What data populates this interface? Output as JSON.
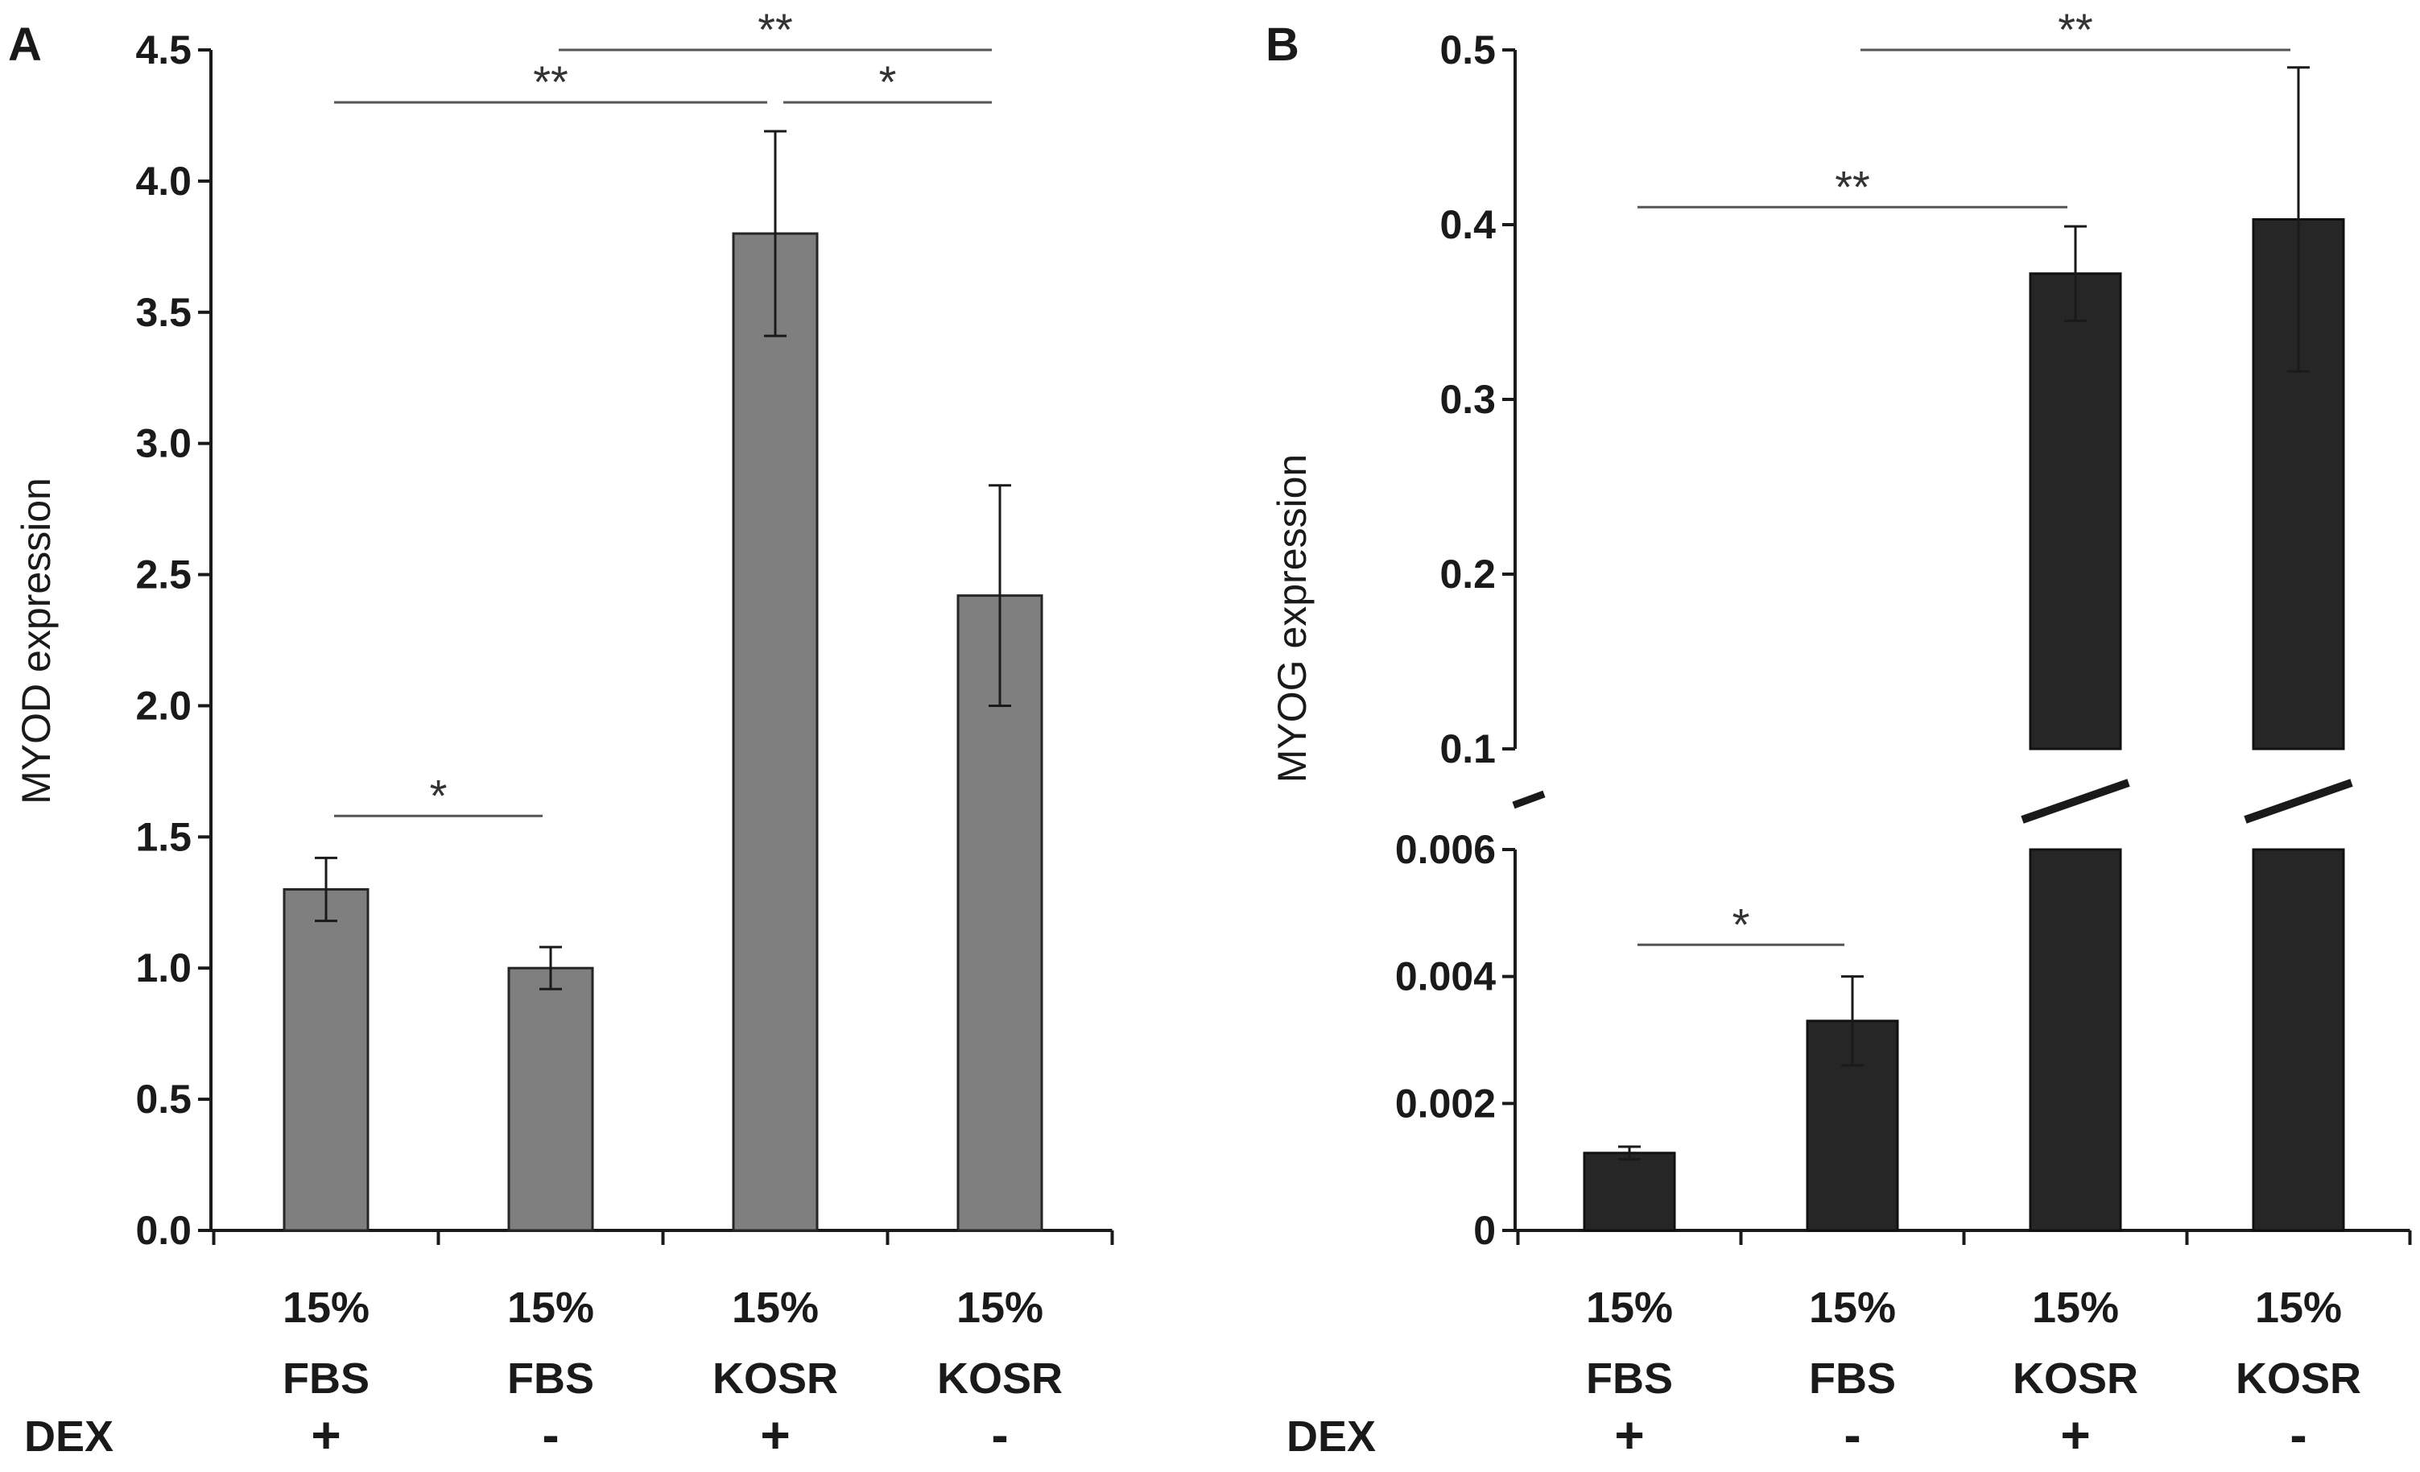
{
  "panels": [
    {
      "panel_label": "A",
      "dex_label": "DEX",
      "chart_data": {
        "type": "bar",
        "ylabel": "MYOD expression",
        "xlabel": "",
        "ylim": [
          0,
          4.5
        ],
        "yticks": [
          "0.0",
          "0.5",
          "1.0",
          "1.5",
          "2.0",
          "2.5",
          "3.0",
          "3.5",
          "4.0",
          "4.5"
        ],
        "categories": [
          {
            "line1": "15%",
            "line2": "FBS",
            "dex": "+"
          },
          {
            "line1": "15%",
            "line2": "FBS",
            "dex": "-"
          },
          {
            "line1": "15%",
            "line2": "KOSR",
            "dex": "+"
          },
          {
            "line1": "15%",
            "line2": "KOSR",
            "dex": "-"
          }
        ],
        "values": [
          1.3,
          1.0,
          3.8,
          2.42
        ],
        "errors": [
          0.12,
          0.08,
          0.39,
          0.42
        ],
        "bar_color": "#7f7f7f",
        "significance": [
          {
            "from": 0,
            "to": 1,
            "label": "*",
            "y": 1.58
          },
          {
            "from": 0,
            "to": 2,
            "label": "**",
            "y": 4.3
          },
          {
            "from": 2,
            "to": 3,
            "label": "*",
            "y": 4.3
          },
          {
            "from": 1,
            "to": 3,
            "label": "**",
            "y": 4.5
          }
        ]
      }
    },
    {
      "panel_label": "B",
      "dex_label": "DEX",
      "chart_data": {
        "type": "bar",
        "ylabel": "MYOG expression",
        "xlabel": "",
        "broken_axis": true,
        "ylim_lower": [
          0,
          0.006
        ],
        "ylim_upper": [
          0.1,
          0.5
        ],
        "yticks_lower": [
          "0",
          "0.002",
          "0.004",
          "0.006"
        ],
        "yticks_upper": [
          "0.1",
          "0.2",
          "0.3",
          "0.4",
          "0.5"
        ],
        "categories": [
          {
            "line1": "15%",
            "line2": "FBS",
            "dex": "+"
          },
          {
            "line1": "15%",
            "line2": "FBS",
            "dex": "-"
          },
          {
            "line1": "15%",
            "line2": "KOSR",
            "dex": "+"
          },
          {
            "line1": "15%",
            "line2": "KOSR",
            "dex": "-"
          }
        ],
        "values": [
          0.00122,
          0.0033,
          0.372,
          0.403
        ],
        "errors": [
          0.0001,
          0.0007,
          0.027,
          0.087
        ],
        "bar_color": "#262626",
        "significance": [
          {
            "from": 0,
            "to": 1,
            "label": "*",
            "y": 0.0045
          },
          {
            "from": 0,
            "to": 2,
            "label": "**",
            "y": 0.41
          },
          {
            "from": 1,
            "to": 3,
            "label": "**",
            "y": 0.5
          }
        ]
      }
    }
  ]
}
